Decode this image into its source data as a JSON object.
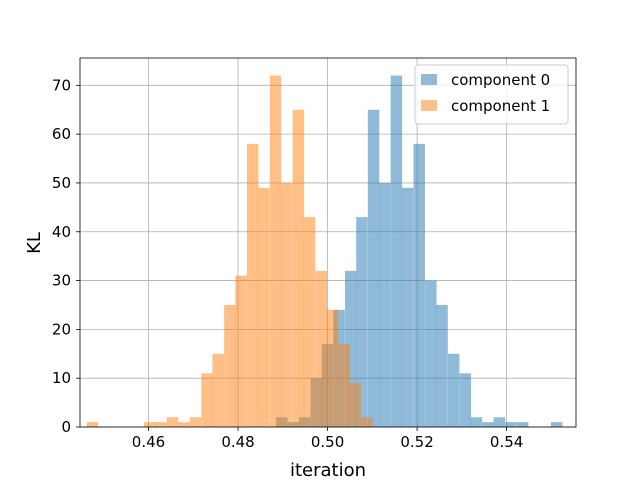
{
  "chart_data": {
    "type": "histogram",
    "xlabel": "iteration",
    "ylabel": "KL",
    "xlim": [
      0.4447,
      0.5555
    ],
    "ylim": [
      0,
      75.6
    ],
    "xticks": [
      0.46,
      0.48,
      0.5,
      0.52,
      0.54
    ],
    "xtick_labels": [
      "0.46",
      "0.48",
      "0.50",
      "0.52",
      "0.54"
    ],
    "yticks": [
      0,
      10,
      20,
      30,
      40,
      50,
      60,
      70
    ],
    "ytick_labels": [
      "0",
      "10",
      "20",
      "30",
      "40",
      "50",
      "60",
      "70"
    ],
    "grid": true,
    "legend_position": "upper right",
    "series": [
      {
        "name": "component 0",
        "color": "#1f77b4",
        "alpha": 0.5,
        "bin_width": 0.00256,
        "bins": [
          [
            0.4885,
            2
          ],
          [
            0.4911,
            1
          ],
          [
            0.4936,
            2
          ],
          [
            0.4962,
            10
          ],
          [
            0.4987,
            17
          ],
          [
            0.5013,
            24
          ],
          [
            0.5039,
            32
          ],
          [
            0.5064,
            43
          ],
          [
            0.509,
            65
          ],
          [
            0.5115,
            50
          ],
          [
            0.5141,
            72
          ],
          [
            0.5166,
            49
          ],
          [
            0.5192,
            58
          ],
          [
            0.5218,
            30
          ],
          [
            0.5243,
            25
          ],
          [
            0.5269,
            15
          ],
          [
            0.5295,
            11
          ],
          [
            0.532,
            2
          ],
          [
            0.5346,
            1
          ],
          [
            0.5371,
            2
          ],
          [
            0.5397,
            1
          ],
          [
            0.5423,
            1
          ],
          [
            0.5448,
            0
          ],
          [
            0.5474,
            0
          ],
          [
            0.5499,
            1
          ]
        ]
      },
      {
        "name": "component 1",
        "color": "#ff7f0e",
        "alpha": 0.5,
        "bin_width": 0.00256,
        "bins": [
          [
            0.4462,
            1
          ],
          [
            0.4488,
            0
          ],
          [
            0.4513,
            0
          ],
          [
            0.4539,
            0
          ],
          [
            0.4564,
            0
          ],
          [
            0.459,
            1
          ],
          [
            0.4615,
            1
          ],
          [
            0.4641,
            2
          ],
          [
            0.4666,
            1
          ],
          [
            0.4692,
            2
          ],
          [
            0.4718,
            11
          ],
          [
            0.4743,
            15
          ],
          [
            0.4769,
            25
          ],
          [
            0.4794,
            31
          ],
          [
            0.482,
            58
          ],
          [
            0.4845,
            49
          ],
          [
            0.4871,
            72
          ],
          [
            0.4896,
            50
          ],
          [
            0.4922,
            65
          ],
          [
            0.4947,
            43
          ],
          [
            0.4973,
            32
          ],
          [
            0.4998,
            24
          ],
          [
            0.5024,
            17
          ],
          [
            0.5049,
            9
          ],
          [
            0.5075,
            2
          ]
        ]
      }
    ]
  }
}
